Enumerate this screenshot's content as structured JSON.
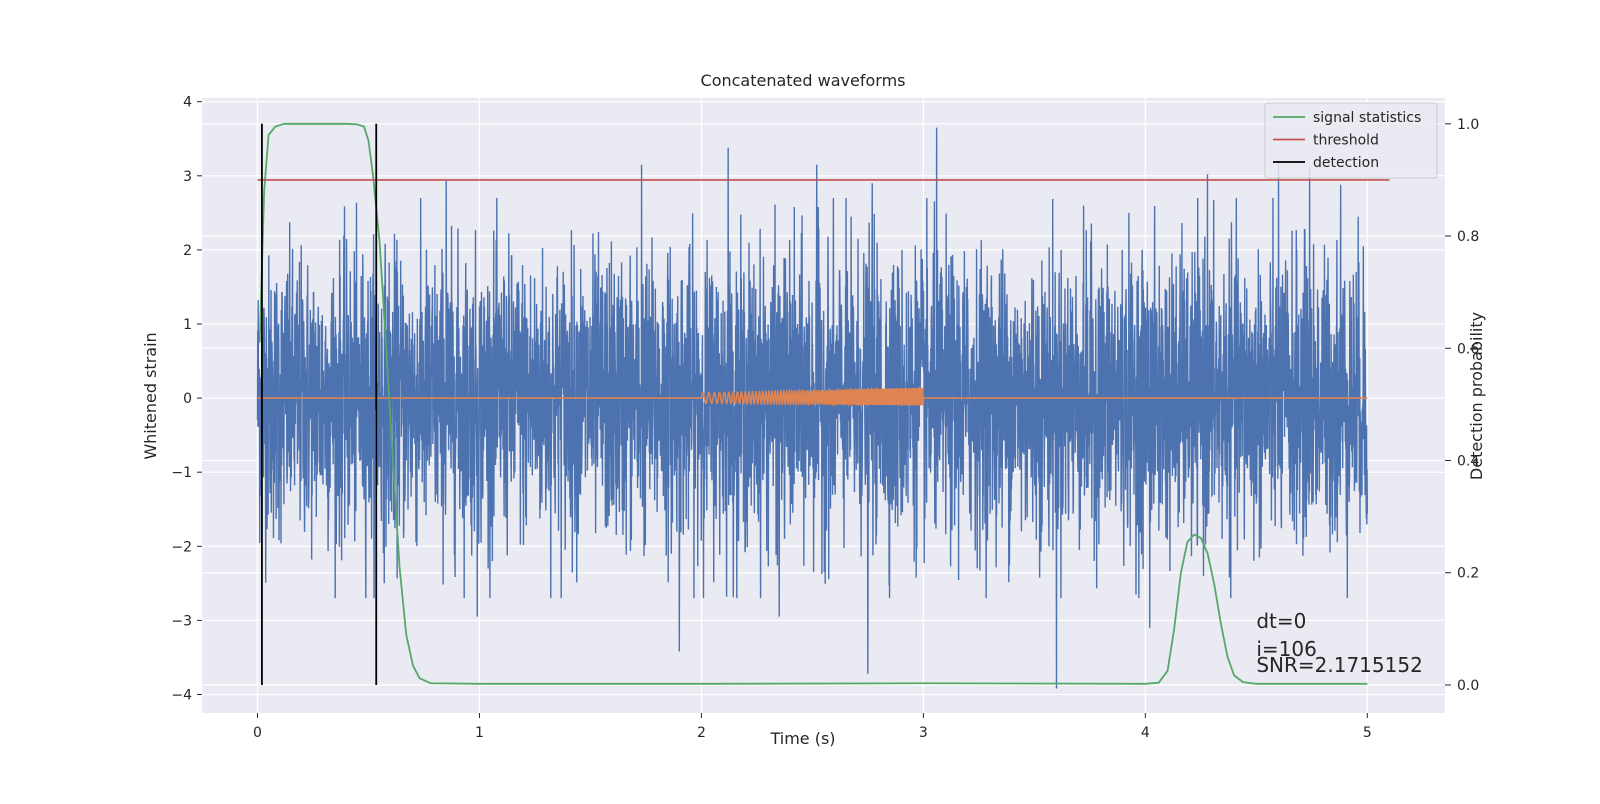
{
  "chart_data": {
    "type": "line",
    "title": "Concatenated waveforms",
    "xlabel": "Time (s)",
    "ylabel": "Whitened strain",
    "ylabel_right": "Detection probability",
    "xlim": [
      -0.25,
      5.35
    ],
    "ylim": [
      -4.25,
      4.05
    ],
    "ylim_right": [
      -0.05,
      1.046
    ],
    "x_ticks": [
      0,
      1,
      2,
      3,
      4,
      5
    ],
    "x_tick_labels": [
      "0",
      "1",
      "2",
      "3",
      "4",
      "5"
    ],
    "y_ticks": [
      -4,
      -3,
      -2,
      -1,
      0,
      1,
      2,
      3,
      4
    ],
    "y_tick_labels": [
      "−4",
      "−3",
      "−2",
      "−1",
      "0",
      "1",
      "2",
      "3",
      "4"
    ],
    "y_right_ticks": [
      0.0,
      0.2,
      0.4,
      0.6,
      0.8,
      1.0
    ],
    "y_right_tick_labels": [
      "0.0",
      "0.2",
      "0.4",
      "0.6",
      "0.8",
      "1.0"
    ],
    "grid": true,
    "legend_position": "top-right",
    "legend": [
      {
        "label": "signal statistics",
        "color": "#55a868"
      },
      {
        "label": "threshold",
        "color": "#c44e52"
      },
      {
        "label": "detection",
        "color": "#000000"
      }
    ],
    "series": [
      {
        "name": "whitened strain",
        "color": "#4c72b0",
        "axis": "left",
        "x_range": [
          0,
          5
        ],
        "typical_amplitude": 2.0,
        "peaks": [
          {
            "x": 0.85,
            "y": 2.95
          },
          {
            "x": 1.73,
            "y": 3.15
          },
          {
            "x": 2.12,
            "y": 3.38
          },
          {
            "x": 2.52,
            "y": 3.15
          },
          {
            "x": 2.77,
            "y": 2.9
          },
          {
            "x": 3.06,
            "y": 3.65
          },
          {
            "x": 4.28,
            "y": 3.02
          },
          {
            "x": 4.6,
            "y": 3.22
          },
          {
            "x": 4.74,
            "y": 3.12
          },
          {
            "x": 4.88,
            "y": 2.88
          },
          {
            "x": 1.9,
            "y": -3.42
          },
          {
            "x": 2.75,
            "y": -3.72
          },
          {
            "x": 3.6,
            "y": -3.92
          },
          {
            "x": 0.99,
            "y": -2.95
          },
          {
            "x": 4.02,
            "y": -3.1
          },
          {
            "x": 2.35,
            "y": -2.95
          }
        ]
      },
      {
        "name": "injected signal",
        "color": "#dd8452",
        "axis": "left",
        "segments": [
          {
            "x": [
              0,
              2
            ],
            "y": 0
          },
          {
            "chirp_x": [
              2,
              3
            ],
            "amplitude_start": 0.07,
            "amplitude_end": 0.12
          }
        ],
        "flat_after": [
          3,
          5
        ]
      },
      {
        "name": "signal statistics",
        "color": "#55a868",
        "axis": "right",
        "x": [
          0.01,
          0.03,
          0.05,
          0.08,
          0.12,
          0.2,
          0.3,
          0.4,
          0.45,
          0.48,
          0.5,
          0.52,
          0.55,
          0.58,
          0.61,
          0.64,
          0.67,
          0.7,
          0.73,
          0.78,
          1.0,
          2.0,
          3.0,
          4.0,
          4.06,
          4.1,
          4.13,
          4.16,
          4.19,
          4.22,
          4.25,
          4.28,
          4.31,
          4.34,
          4.37,
          4.4,
          4.44,
          4.5,
          5.0
        ],
        "y": [
          0.61,
          0.88,
          0.98,
          0.995,
          1.0,
          1.0,
          1.0,
          1.0,
          0.999,
          0.995,
          0.97,
          0.91,
          0.79,
          0.6,
          0.4,
          0.21,
          0.09,
          0.035,
          0.012,
          0.003,
          0.002,
          0.002,
          0.003,
          0.002,
          0.004,
          0.025,
          0.1,
          0.2,
          0.255,
          0.268,
          0.262,
          0.235,
          0.18,
          0.11,
          0.05,
          0.017,
          0.005,
          0.002,
          0.002
        ]
      },
      {
        "name": "threshold",
        "color": "#c44e52",
        "axis": "right",
        "x": [
          0,
          5.1
        ],
        "y": [
          0.9,
          0.9
        ]
      },
      {
        "name": "detection",
        "color": "#000000",
        "axis": "right",
        "vlines_x": [
          0.02,
          0.535
        ],
        "vlines_y": [
          0,
          1.0
        ]
      }
    ],
    "annotations": [
      {
        "text": "dt=0",
        "x": 4.5,
        "y": -3.1
      },
      {
        "text": "i=106",
        "x": 4.5,
        "y": -3.48
      },
      {
        "text": "SNR=2.1715152",
        "x": 4.5,
        "y": -3.7
      }
    ]
  }
}
